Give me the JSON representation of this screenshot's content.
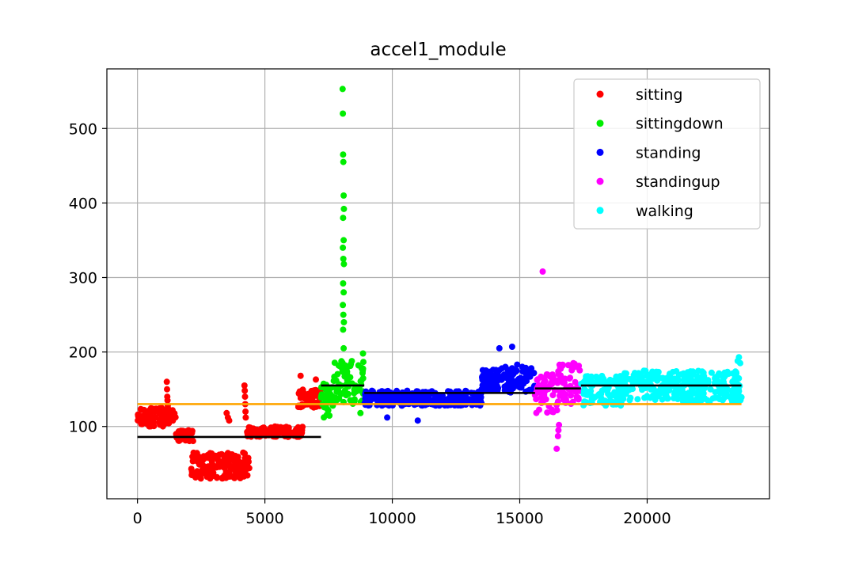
{
  "chart_data": {
    "type": "scatter",
    "title": "accel1_module",
    "xlabel": "",
    "ylabel": "",
    "xlim": [
      -1200,
      24800
    ],
    "ylim": [
      3,
      580
    ],
    "xticks": [
      0,
      5000,
      10000,
      15000,
      20000
    ],
    "xtick_labels": [
      "0",
      "5000",
      "10000",
      "15000",
      "20000"
    ],
    "yticks": [
      100,
      200,
      300,
      400,
      500
    ],
    "ytick_labels": [
      "100",
      "200",
      "300",
      "400",
      "500"
    ],
    "grid": true,
    "legend_position": "top-right",
    "series": [
      {
        "name": "sitting",
        "color": "#ff0000",
        "segments": [
          {
            "x0": 0,
            "x1": 1500,
            "lo": 100,
            "hi": 125
          },
          {
            "x0": 1500,
            "x1": 2200,
            "lo": 80,
            "hi": 95
          },
          {
            "x0": 2100,
            "x1": 4400,
            "lo": 30,
            "hi": 65
          },
          {
            "x0": 4300,
            "x1": 6500,
            "lo": 86,
            "hi": 100
          },
          {
            "x0": 6300,
            "x1": 7200,
            "lo": 125,
            "hi": 150
          }
        ],
        "outliers": [
          [
            1150,
            160
          ],
          [
            1160,
            150
          ],
          [
            1170,
            140
          ],
          [
            1180,
            135
          ],
          [
            1190,
            128
          ],
          [
            3500,
            118
          ],
          [
            3550,
            112
          ],
          [
            3600,
            108
          ],
          [
            4200,
            155
          ],
          [
            4210,
            148
          ],
          [
            4220,
            140
          ],
          [
            4230,
            130
          ],
          [
            4240,
            120
          ],
          [
            4250,
            112
          ],
          [
            6400,
            168
          ],
          [
            7000,
            163
          ]
        ],
        "mean": 86,
        "mean_range": [
          0,
          7200
        ]
      },
      {
        "name": "sittingdown",
        "color": "#00ee00",
        "segments": [
          {
            "x0": 7200,
            "x1": 7700,
            "lo": 112,
            "hi": 160
          },
          {
            "x0": 7700,
            "x1": 8900,
            "lo": 130,
            "hi": 190
          }
        ],
        "outliers": [
          [
            8050,
            553
          ],
          [
            8060,
            520
          ],
          [
            8070,
            465
          ],
          [
            8080,
            455
          ],
          [
            8090,
            410
          ],
          [
            8100,
            392
          ],
          [
            8070,
            380
          ],
          [
            8090,
            350
          ],
          [
            8060,
            340
          ],
          [
            8080,
            325
          ],
          [
            8100,
            318
          ],
          [
            8070,
            292
          ],
          [
            8090,
            280
          ],
          [
            8060,
            263
          ],
          [
            8080,
            250
          ],
          [
            8100,
            240
          ],
          [
            8070,
            230
          ],
          [
            8090,
            205
          ],
          [
            8750,
            118
          ],
          [
            8850,
            198
          ]
        ],
        "mean": 155,
        "mean_range": [
          7200,
          8900
        ]
      },
      {
        "name": "standing",
        "color": "#0000ff",
        "segments": [
          {
            "x0": 8900,
            "x1": 10000,
            "lo": 128,
            "hi": 148
          },
          {
            "x0": 10000,
            "x1": 13500,
            "lo": 128,
            "hi": 148
          },
          {
            "x0": 13500,
            "x1": 15600,
            "lo": 145,
            "hi": 180
          }
        ],
        "outliers": [
          [
            9800,
            112
          ],
          [
            11000,
            108
          ],
          [
            14200,
            205
          ],
          [
            14700,
            207
          ],
          [
            14900,
            183
          ],
          [
            15100,
            180
          ]
        ],
        "mean": 145,
        "mean_range": [
          8900,
          15600
        ]
      },
      {
        "name": "standingup",
        "color": "#ff00ff",
        "segments": [
          {
            "x0": 15600,
            "x1": 16500,
            "lo": 118,
            "hi": 170
          },
          {
            "x0": 16500,
            "x1": 17400,
            "lo": 130,
            "hi": 185
          }
        ],
        "outliers": [
          [
            15900,
            308
          ],
          [
            16450,
            70
          ],
          [
            16500,
            87
          ],
          [
            16520,
            95
          ],
          [
            16540,
            102
          ]
        ],
        "mean": 151,
        "mean_range": [
          15600,
          17400
        ]
      },
      {
        "name": "walking",
        "color": "#00ffff",
        "segments": [
          {
            "x0": 17400,
            "x1": 19000,
            "lo": 128,
            "hi": 168
          },
          {
            "x0": 19000,
            "x1": 23700,
            "lo": 133,
            "hi": 175
          }
        ],
        "outliers": [
          [
            23600,
            193
          ],
          [
            23550,
            188
          ],
          [
            23650,
            185
          ]
        ],
        "mean": 155,
        "mean_range": [
          17400,
          23700
        ]
      }
    ],
    "reference_lines": [
      {
        "color": "#ffa500",
        "y": 130,
        "x_range": [
          0,
          23700
        ]
      }
    ]
  }
}
